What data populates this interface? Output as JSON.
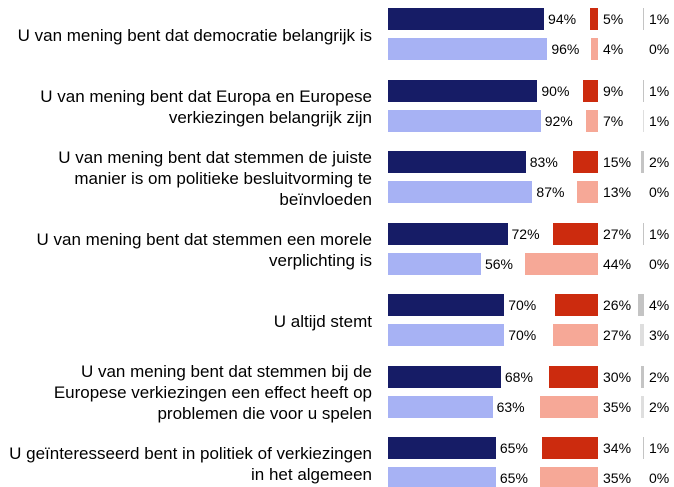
{
  "chart_data": [
    {
      "type": "bar",
      "categories": [
        "U van mening bent dat democratie belangrijk is",
        "U van mening bent dat Europa en Europese verkiezingen belangrijk zijn",
        "U van mening bent dat stemmen de juiste manier is om politieke besluitvorming te beïnvloeden",
        "U van mening bent dat stemmen een morele verplichting is",
        "U altijd stemt",
        "U van mening bent dat stemmen bij de Europese verkiezingen een effect heeft op problemen die voor u spelen",
        "U geïnteresseerd bent in politiek of verkiezingen in het algemeen"
      ],
      "series": [
        {
          "color": "#161c66",
          "values": [
            94,
            90,
            83,
            72,
            70,
            68,
            65
          ],
          "value_labels": [
            "94%",
            "90%",
            "83%",
            "72%",
            "70%",
            "68%",
            "65%"
          ]
        },
        {
          "color": "#a7b2f4",
          "values": [
            96,
            92,
            87,
            56,
            70,
            63,
            65
          ],
          "value_labels": [
            "96%",
            "92%",
            "87%",
            "56%",
            "70%",
            "63%",
            "65%"
          ]
        }
      ]
    },
    {
      "type": "bar",
      "series": [
        {
          "color": "#cc2b0e",
          "values": [
            5,
            9,
            15,
            27,
            26,
            30,
            34
          ],
          "value_labels": [
            "5%",
            "9%",
            "15%",
            "27%",
            "26%",
            "30%",
            "34%"
          ]
        },
        {
          "color": "#f6a897",
          "values": [
            4,
            7,
            13,
            44,
            27,
            35,
            35
          ],
          "value_labels": [
            "4%",
            "7%",
            "13%",
            "44%",
            "27%",
            "35%",
            "35%"
          ]
        }
      ]
    },
    {
      "type": "bar",
      "series": [
        {
          "color": "#c4c4c4",
          "values": [
            1,
            1,
            2,
            1,
            4,
            2,
            1
          ],
          "value_labels": [
            "1%",
            "1%",
            "2%",
            "1%",
            "4%",
            "2%",
            "1%"
          ]
        },
        {
          "color": "#dedede",
          "values": [
            0,
            1,
            0,
            0,
            3,
            2,
            0
          ],
          "value_labels": [
            "0%",
            "1%",
            "0%",
            "0%",
            "3%",
            "2%",
            "0%"
          ]
        }
      ]
    }
  ]
}
